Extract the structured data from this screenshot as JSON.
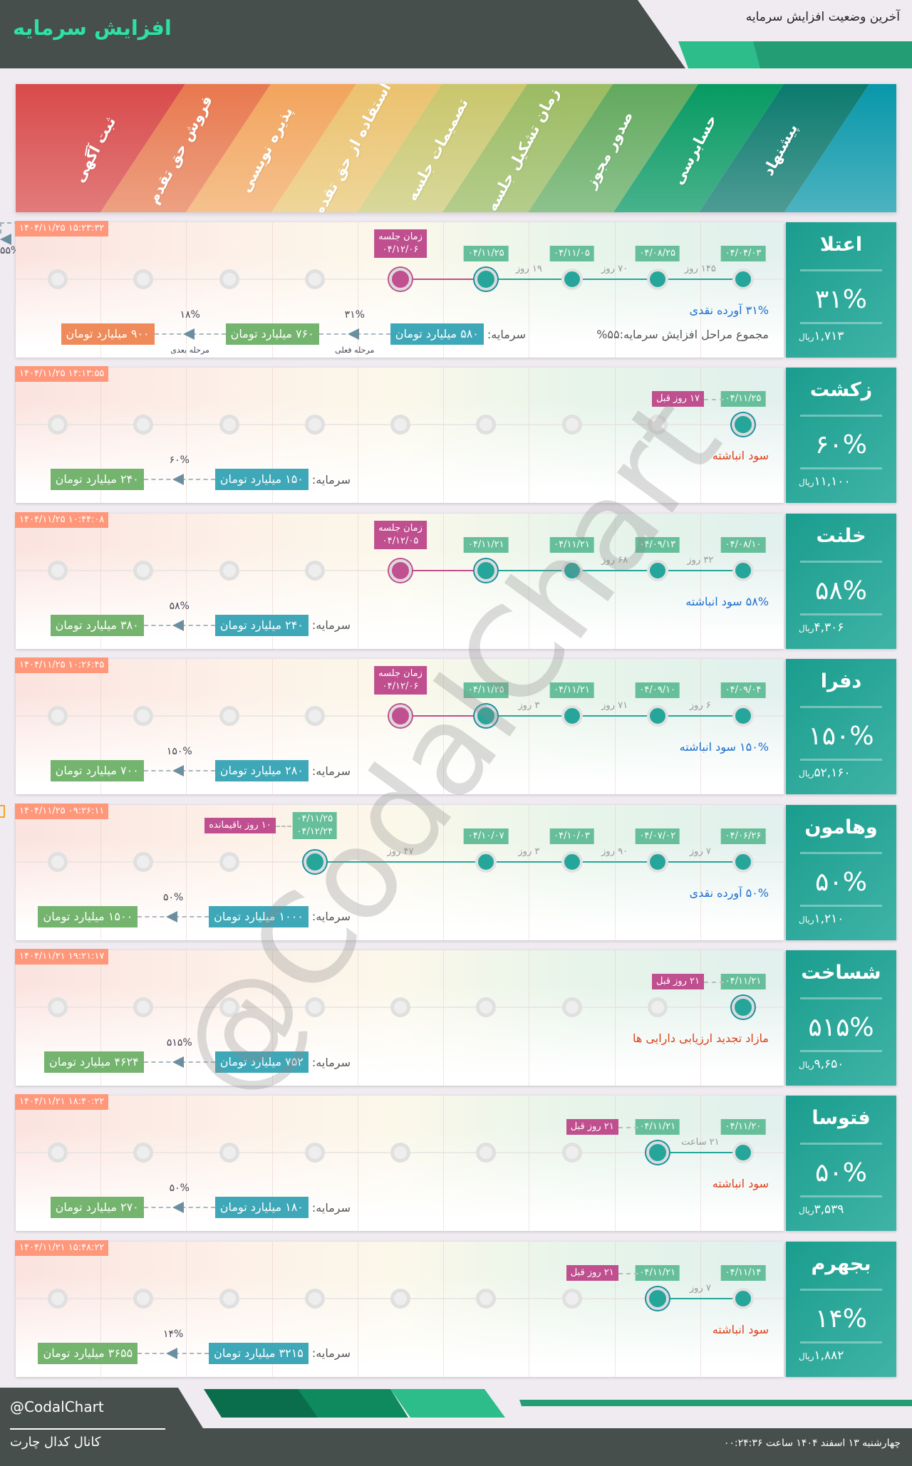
{
  "header": {
    "title": "افزایش سرمایه",
    "subtitle": "آخرین وضعیت افزایش سرمایه"
  },
  "colors": {
    "accent": "#2ee0a3",
    "dark": "#464f4b",
    "teal": "#26a69a",
    "meeting": "#bf4f8f",
    "date_label": "#66bf9a",
    "timestamp": "#ff977a",
    "capital_now": "#3fa8b8",
    "capital_after": "#74b46e",
    "capital_next": "#ef8a5a",
    "blue_text": "#1e6fd0",
    "red_text": "#e0401a"
  },
  "stages": [
    "پیشنهاد",
    "حسابرسی",
    "صدور مجوز",
    "زمان تشکیل جلسه",
    "تصمیمات جلسه",
    "استفاده از حق تقدم",
    "پذیره نویسی",
    "فروش حق تقدم",
    "ثبت آگهی"
  ],
  "rows": [
    {
      "name": "اعتلا",
      "percent": "۳۱%",
      "price": "۱,۷۱۳",
      "currency": "ریال",
      "timestamp": "۱۴۰۴/۱۱/۲۵ ۱۵:۲۳:۳۲",
      "stages": [
        {
          "s": "done",
          "date": "۰۴/۰۴/۰۳"
        },
        {
          "s": "done",
          "date": "۰۴/۰۸/۲۵"
        },
        {
          "s": "done",
          "date": "۰۴/۱۱/۰۵"
        },
        {
          "s": "current",
          "date": "۰۴/۱۱/۲۵"
        },
        {
          "s": "meeting",
          "title": "زمان جلسه",
          "date": "۰۴/۱۲/۰۶"
        },
        {
          "s": "pending"
        },
        {
          "s": "pending"
        },
        {
          "s": "pending"
        },
        {
          "s": "pending"
        }
      ],
      "gaps": [
        {
          "a": 0,
          "b": 1,
          "text": "۱۴۵ روز"
        },
        {
          "a": 1,
          "b": 2,
          "text": "۷۰ روز"
        },
        {
          "a": 2,
          "b": 3,
          "text": "۱۹ روز"
        }
      ],
      "desc": {
        "text": "۳۱% آورده نقدی",
        "tone": "blue"
      },
      "sub": "مجموع مراحل افزایش سرمایه:۵۵%",
      "capital": {
        "label": "سرمایه:",
        "boxes": [
          {
            "text": "۵۸۰ میلیارد تومان",
            "tone": "now"
          },
          {
            "text": "۷۶۰ میلیارد تومان",
            "tone": "after"
          },
          {
            "text": "۹۰۰ میلیارد تومان",
            "tone": "next"
          }
        ],
        "steps": [
          {
            "pct": "۳۱%",
            "note": "مرحله فعلی"
          },
          {
            "pct": "۱۸%",
            "note": "مرحله بعدی"
          }
        ],
        "total": "۵۵%"
      }
    },
    {
      "name": "زکشت",
      "percent": "۶۰%",
      "price": "۱۱,۱۰۰",
      "currency": "ریال",
      "timestamp": "۱۴۰۴/۱۱/۲۵ ۱۴:۱۳:۵۵",
      "stages": [
        {
          "s": "current",
          "date": "۰۴/۱۱/۲۵",
          "note": "۱۷ روز قبل"
        },
        {
          "s": "pending"
        },
        {
          "s": "pending"
        },
        {
          "s": "pending"
        },
        {
          "s": "pending"
        },
        {
          "s": "pending"
        },
        {
          "s": "pending"
        },
        {
          "s": "pending"
        },
        {
          "s": "pending"
        }
      ],
      "gaps": [],
      "desc": {
        "text": "سود انباشته",
        "tone": "red"
      },
      "capital": {
        "label": "سرمایه:",
        "boxes": [
          {
            "text": "۱۵۰ میلیارد تومان",
            "tone": "now"
          },
          {
            "text": "۲۴۰ میلیارد تومان",
            "tone": "after"
          }
        ],
        "steps": [
          {
            "pct": "۶۰%"
          }
        ]
      }
    },
    {
      "name": "خلنت",
      "percent": "۵۸%",
      "price": "۴,۳۰۶",
      "currency": "ریال",
      "timestamp": "۱۴۰۴/۱۱/۲۵ ۱۰:۴۴:۰۸",
      "stages": [
        {
          "s": "done",
          "date": "۰۴/۰۸/۱۰"
        },
        {
          "s": "done",
          "date": "۰۴/۰۹/۱۳"
        },
        {
          "s": "done",
          "date": "۰۴/۱۱/۲۱"
        },
        {
          "s": "current",
          "date": "۰۴/۱۱/۲۱"
        },
        {
          "s": "meeting",
          "title": "زمان جلسه",
          "date": "۰۴/۱۲/۰۵"
        },
        {
          "s": "pending"
        },
        {
          "s": "pending"
        },
        {
          "s": "pending"
        },
        {
          "s": "pending"
        }
      ],
      "gaps": [
        {
          "a": 0,
          "b": 1,
          "text": "۳۲ روز"
        },
        {
          "a": 1,
          "b": 2,
          "text": "۶۸ روز"
        }
      ],
      "desc": {
        "text": "۵۸% سود انباشته",
        "tone": "blue"
      },
      "capital": {
        "label": "سرمایه:",
        "boxes": [
          {
            "text": "۲۴۰ میلیارد تومان",
            "tone": "now"
          },
          {
            "text": "۳۸۰ میلیارد تومان",
            "tone": "after"
          }
        ],
        "steps": [
          {
            "pct": "۵۸%"
          }
        ]
      }
    },
    {
      "name": "دفرا",
      "percent": "۱۵۰%",
      "price": "۵۲,۱۶۰",
      "currency": "ریال",
      "timestamp": "۱۴۰۴/۱۱/۲۵ ۱۰:۲۶:۴۵",
      "stages": [
        {
          "s": "done",
          "date": "۰۴/۰۹/۰۴"
        },
        {
          "s": "done",
          "date": "۰۴/۰۹/۱۰"
        },
        {
          "s": "done",
          "date": "۰۴/۱۱/۲۱"
        },
        {
          "s": "current",
          "date": "۰۴/۱۱/۲۵"
        },
        {
          "s": "meeting",
          "title": "زمان جلسه",
          "date": "۰۴/۱۲/۰۶"
        },
        {
          "s": "pending"
        },
        {
          "s": "pending"
        },
        {
          "s": "pending"
        },
        {
          "s": "pending"
        }
      ],
      "gaps": [
        {
          "a": 0,
          "b": 1,
          "text": "۶ روز"
        },
        {
          "a": 1,
          "b": 2,
          "text": "۷۱ روز"
        },
        {
          "a": 2,
          "b": 3,
          "text": "۳ روز"
        }
      ],
      "desc": {
        "text": "۱۵۰% سود انباشته",
        "tone": "blue"
      },
      "capital": {
        "label": "سرمایه:",
        "boxes": [
          {
            "text": "۲۸۰ میلیارد تومان",
            "tone": "now"
          },
          {
            "text": "۷۰۰ میلیارد تومان",
            "tone": "after"
          }
        ],
        "steps": [
          {
            "pct": "۱۵۰%"
          }
        ]
      }
    },
    {
      "name": "وهامون",
      "percent": "۵۰%",
      "price": "۱,۲۱۰",
      "currency": "ریال",
      "timestamp": "۱۴۰۴/۱۱/۲۵ ۰۹:۲۶:۱۱",
      "stages": [
        {
          "s": "done",
          "date": "۰۴/۰۶/۲۶"
        },
        {
          "s": "done",
          "date": "۰۴/۰۷/۰۲"
        },
        {
          "s": "done",
          "date": "۰۴/۱۰/۰۳"
        },
        {
          "s": "done",
          "date": "۰۴/۱۰/۰۷"
        },
        {
          "s": "none"
        },
        {
          "s": "current",
          "date": "۰۴/۱۱/۲۵",
          "date2": "۰۴/۱۲/۲۴",
          "note": "۱۰ روز باقیمانده"
        },
        {
          "s": "pending"
        },
        {
          "s": "pending"
        },
        {
          "s": "pending"
        }
      ],
      "gaps": [
        {
          "a": 0,
          "b": 1,
          "text": "۷ روز"
        },
        {
          "a": 1,
          "b": 2,
          "text": "۹۰ روز"
        },
        {
          "a": 2,
          "b": 3,
          "text": "۳ روز"
        },
        {
          "a": 3,
          "b": 5,
          "text": "۴۷ روز"
        }
      ],
      "desc": {
        "text": "۵۰% آورده نقدی",
        "tone": "blue"
      },
      "capital": {
        "label": "سرمایه:",
        "boxes": [
          {
            "text": "۱۰۰۰ میلیارد تومان",
            "tone": "now"
          },
          {
            "text": "۱۵۰۰ میلیارد تومان",
            "tone": "after"
          }
        ],
        "steps": [
          {
            "pct": "۵۰%"
          }
        ]
      }
    },
    {
      "name": "شساخت",
      "percent": "۵۱۵%",
      "price": "۹,۶۵۰",
      "currency": "ریال",
      "timestamp": "۱۴۰۴/۱۱/۲۱ ۱۹:۲۱:۱۷",
      "stages": [
        {
          "s": "current",
          "date": "۰۴/۱۱/۲۱",
          "note": "۲۱ روز قبل"
        },
        {
          "s": "pending"
        },
        {
          "s": "pending"
        },
        {
          "s": "pending"
        },
        {
          "s": "pending"
        },
        {
          "s": "pending"
        },
        {
          "s": "pending"
        },
        {
          "s": "pending"
        },
        {
          "s": "pending"
        }
      ],
      "gaps": [],
      "desc": {
        "text": "مازاد تجدید ارزیابی دارایی ها",
        "tone": "red"
      },
      "capital": {
        "label": "سرمایه:",
        "boxes": [
          {
            "text": "۷۵۲ میلیارد تومان",
            "tone": "now"
          },
          {
            "text": "۴۶۲۴ میلیارد تومان",
            "tone": "after"
          }
        ],
        "steps": [
          {
            "pct": "۵۱۵%"
          }
        ]
      }
    },
    {
      "name": "فتوسا",
      "percent": "۵۰%",
      "price": "۳,۵۳۹",
      "currency": "ریال",
      "timestamp": "۱۴۰۴/۱۱/۲۱ ۱۸:۴۰:۲۲",
      "stages": [
        {
          "s": "done",
          "date": "۰۴/۱۱/۲۰"
        },
        {
          "s": "current",
          "date": "۰۴/۱۱/۲۱",
          "note": "۲۱ روز قبل"
        },
        {
          "s": "pending"
        },
        {
          "s": "pending"
        },
        {
          "s": "pending"
        },
        {
          "s": "pending"
        },
        {
          "s": "pending"
        },
        {
          "s": "pending"
        },
        {
          "s": "pending"
        }
      ],
      "gaps": [
        {
          "a": 0,
          "b": 1,
          "text": "۲۱ ساعت"
        }
      ],
      "desc": {
        "text": "سود انباشته",
        "tone": "red"
      },
      "capital": {
        "label": "سرمایه:",
        "boxes": [
          {
            "text": "۱۸۰ میلیارد تومان",
            "tone": "now"
          },
          {
            "text": "۲۷۰ میلیارد تومان",
            "tone": "after"
          }
        ],
        "steps": [
          {
            "pct": "۵۰%"
          }
        ]
      }
    },
    {
      "name": "بجهرم",
      "percent": "۱۴%",
      "price": "۱,۸۸۲",
      "currency": "ریال",
      "timestamp": "۱۴۰۴/۱۱/۲۱ ۱۵:۴۸:۲۲",
      "stages": [
        {
          "s": "done",
          "date": "۰۴/۱۱/۱۴"
        },
        {
          "s": "current",
          "date": "۰۴/۱۱/۲۱",
          "note": "۲۱ روز قبل"
        },
        {
          "s": "pending"
        },
        {
          "s": "pending"
        },
        {
          "s": "pending"
        },
        {
          "s": "pending"
        },
        {
          "s": "pending"
        },
        {
          "s": "pending"
        },
        {
          "s": "pending"
        }
      ],
      "gaps": [
        {
          "a": 0,
          "b": 1,
          "text": "۷ روز"
        }
      ],
      "desc": {
        "text": "سود انباشته",
        "tone": "red"
      },
      "capital": {
        "label": "سرمایه:",
        "boxes": [
          {
            "text": "۳۲۱۵ میلیارد تومان",
            "tone": "now"
          },
          {
            "text": "۳۶۵۵ میلیارد تومان",
            "tone": "after"
          }
        ],
        "steps": [
          {
            "pct": "۱۴%"
          }
        ]
      }
    }
  ],
  "watermark": "@CodalChart",
  "footer": {
    "handle": "@CodalChart",
    "channel": "کانال کدال چارت",
    "date": "چهارشنبه ۱۳ اسفند ۱۴۰۴ ساعت ۰۰:۲۴:۳۶"
  }
}
